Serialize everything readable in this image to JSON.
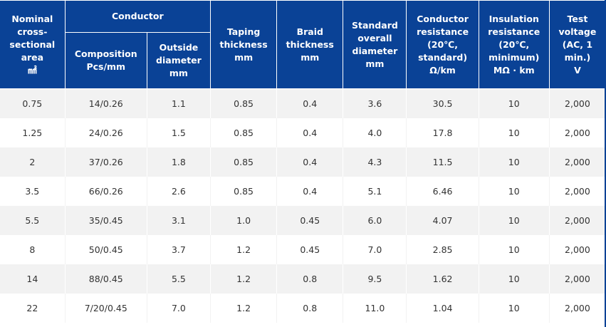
{
  "table": {
    "headers": {
      "area": [
        "Nominal",
        "cross-",
        "sectional",
        "area",
        "㎟"
      ],
      "conductor": "Conductor",
      "composition": [
        "Composition",
        "Pcs/mm"
      ],
      "outside_diameter": [
        "Outside",
        "diameter",
        "mm"
      ],
      "taping": [
        "Taping",
        "thickness",
        "mm"
      ],
      "braid": [
        "Braid",
        "thickness",
        "mm"
      ],
      "overall": [
        "Standard",
        "overall",
        "diameter",
        "mm"
      ],
      "resistance": [
        "Conductor",
        "resistance",
        "(20℃,",
        "standard)",
        "Ω/km"
      ],
      "insulation": [
        "Insulation",
        "resistance",
        "(20℃,",
        "minimum)",
        "MΩ · km"
      ],
      "voltage": [
        "Test",
        "voltage",
        "(AC, 1",
        "min.)",
        "V"
      ]
    },
    "rows": [
      [
        "0.75",
        "14/0.26",
        "1.1",
        "0.85",
        "0.4",
        "3.6",
        "30.5",
        "10",
        "2,000"
      ],
      [
        "1.25",
        "24/0.26",
        "1.5",
        "0.85",
        "0.4",
        "4.0",
        "17.8",
        "10",
        "2,000"
      ],
      [
        "2",
        "37/0.26",
        "1.8",
        "0.85",
        "0.4",
        "4.3",
        "11.5",
        "10",
        "2,000"
      ],
      [
        "3.5",
        "66/0.26",
        "2.6",
        "0.85",
        "0.4",
        "5.1",
        "6.46",
        "10",
        "2,000"
      ],
      [
        "5.5",
        "35/0.45",
        "3.1",
        "1.0",
        "0.45",
        "6.0",
        "4.07",
        "10",
        "2,000"
      ],
      [
        "8",
        "50/0.45",
        "3.7",
        "1.2",
        "0.45",
        "7.0",
        "2.85",
        "10",
        "2,000"
      ],
      [
        "14",
        "88/0.45",
        "5.5",
        "1.2",
        "0.8",
        "9.5",
        "1.62",
        "10",
        "2,000"
      ],
      [
        "22",
        "7/20/0.45",
        "7.0",
        "1.2",
        "0.8",
        "11.0",
        "1.04",
        "10",
        "2,000"
      ]
    ]
  },
  "colors": {
    "header_bg": "#0a4296",
    "header_text": "#ffffff",
    "row_alt": "#f2f2f2",
    "cell_text": "#333333"
  }
}
